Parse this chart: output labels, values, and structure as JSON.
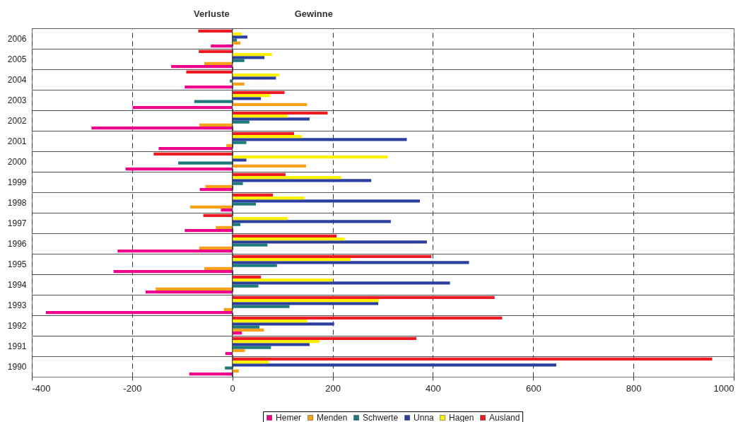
{
  "chart_data": {
    "type": "bar",
    "orientation": "horizontal",
    "annotations": [
      "Verluste",
      "Gewinne"
    ],
    "categories": [
      "2006",
      "2005",
      "2004",
      "2003",
      "2002",
      "2001",
      "2000",
      "1999",
      "1998",
      "1997",
      "1996",
      "1995",
      "1994",
      "1993",
      "1992",
      "1991",
      "1990"
    ],
    "series": [
      {
        "name": "Hemer",
        "color": "#ec008c",
        "values": [
          -43,
          -122,
          -95,
          -199,
          -281,
          -147,
          -213,
          -65,
          -23,
          -95,
          -229,
          -237,
          -173,
          -372,
          19,
          -14,
          -86
        ]
      },
      {
        "name": "Menden",
        "color": "#f7a11a",
        "values": [
          16,
          -56,
          24,
          149,
          -66,
          -12,
          147,
          -54,
          -84,
          -33,
          -66,
          -56,
          -153,
          -17,
          63,
          25,
          13
        ]
      },
      {
        "name": "Schwerte",
        "color": "#1f7a7a",
        "values": [
          9,
          24,
          -5,
          -76,
          34,
          28,
          -108,
          21,
          47,
          16,
          70,
          89,
          52,
          114,
          54,
          77,
          -15
        ]
      },
      {
        "name": "Unna",
        "color": "#2b3f9e",
        "values": [
          30,
          64,
          87,
          57,
          154,
          348,
          28,
          277,
          374,
          316,
          388,
          472,
          434,
          291,
          203,
          154,
          646
        ]
      },
      {
        "name": "Hagen",
        "color": "#fff200",
        "values": [
          19,
          79,
          94,
          75,
          110,
          139,
          310,
          217,
          144,
          110,
          224,
          236,
          200,
          292,
          149,
          174,
          73
        ]
      },
      {
        "name": "Ausland",
        "color": "#ed1c24",
        "values": [
          -68,
          -67,
          -92,
          104,
          190,
          123,
          -157,
          106,
          81,
          -58,
          208,
          397,
          57,
          523,
          538,
          367,
          957
        ]
      }
    ],
    "xlim": [
      -400,
      1000
    ],
    "xticks": [
      -400,
      -200,
      0,
      200,
      400,
      600,
      800,
      1000
    ],
    "ref_lines": [
      {
        "axis": "x",
        "value": 0,
        "color": "#404040",
        "line_style": "solid"
      }
    ],
    "grid": true,
    "legend": "bottom"
  }
}
